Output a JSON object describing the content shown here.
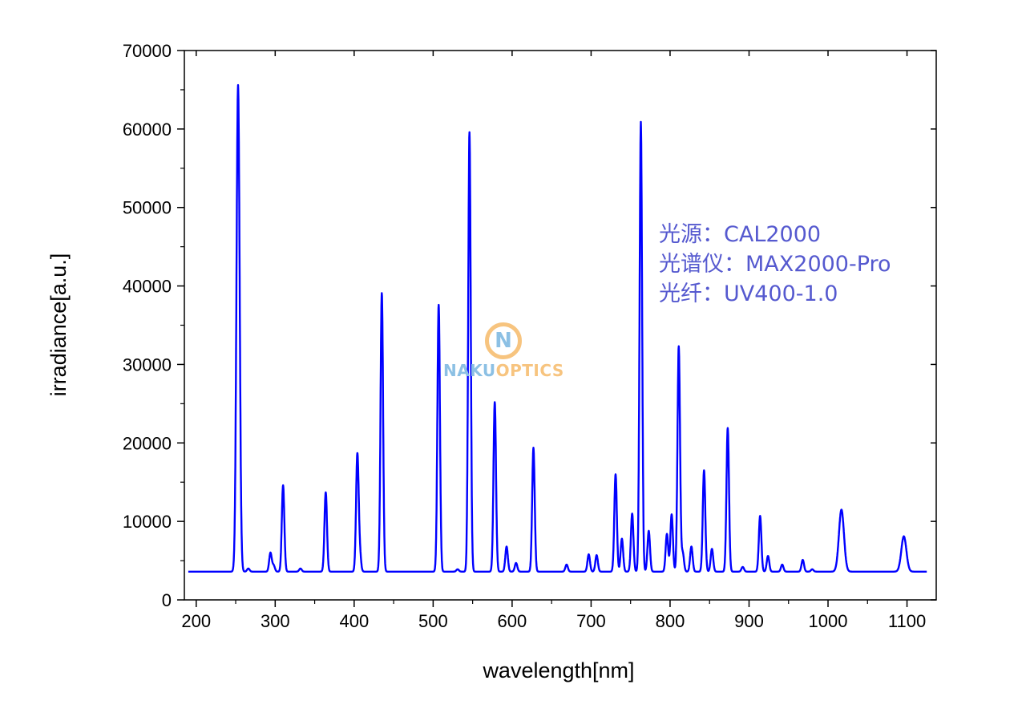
{
  "chart_data": {
    "type": "line",
    "title": "",
    "xlabel": "wavelength[nm]",
    "ylabel": "irradiance[a.u.]",
    "xlim": [
      185,
      1137
    ],
    "ylim": [
      0,
      70000
    ],
    "x_ticks": [
      200,
      300,
      400,
      500,
      600,
      700,
      800,
      900,
      1000,
      1100
    ],
    "y_ticks": [
      0,
      10000,
      20000,
      30000,
      40000,
      50000,
      60000,
      70000
    ],
    "grid": false,
    "line_color": "#0000ff",
    "x_range_of_data": [
      190,
      1125
    ],
    "baseline": 3600,
    "series": [
      {
        "peaks": [
          [
            253,
            65600
          ],
          [
            266,
            4000
          ],
          [
            294,
            6000
          ],
          [
            298,
            4400
          ],
          [
            310,
            14600
          ],
          [
            332,
            4000
          ],
          [
            364,
            13700
          ],
          [
            404,
            18300
          ],
          [
            407,
            6000
          ],
          [
            435,
            39100
          ],
          [
            507,
            37600
          ],
          [
            531,
            3900
          ],
          [
            546,
            59600
          ],
          [
            578,
            25200
          ],
          [
            593,
            6800
          ],
          [
            605,
            4700
          ],
          [
            627,
            19400
          ],
          [
            669,
            4500
          ],
          [
            697,
            5800
          ],
          [
            707,
            5700
          ],
          [
            731,
            16000
          ],
          [
            739,
            7800
          ],
          [
            752,
            11000
          ],
          [
            763,
            60900
          ],
          [
            773,
            8800
          ],
          [
            796,
            8400
          ],
          [
            802,
            10900
          ],
          [
            811,
            32300
          ],
          [
            816,
            6000
          ],
          [
            827,
            6800
          ],
          [
            843,
            16500
          ],
          [
            853,
            6500
          ],
          [
            873,
            21900
          ],
          [
            892,
            4200
          ],
          [
            914,
            10700
          ],
          [
            924,
            5600
          ],
          [
            942,
            4500
          ],
          [
            968,
            5100
          ],
          [
            980,
            3900
          ],
          [
            1017,
            11500
          ],
          [
            1096,
            8100
          ]
        ]
      }
    ]
  },
  "annotation": {
    "light_source": "光源：CAL2000",
    "spectrometer": "光谱仪：MAX2000-Pro",
    "fiber": "光纤：UV400-1.0"
  },
  "watermark": {
    "letter": "N",
    "part1": "NAKU",
    "part2": "OPTICS",
    "color1": "#8cc0e4",
    "color2": "#f7c47f"
  }
}
